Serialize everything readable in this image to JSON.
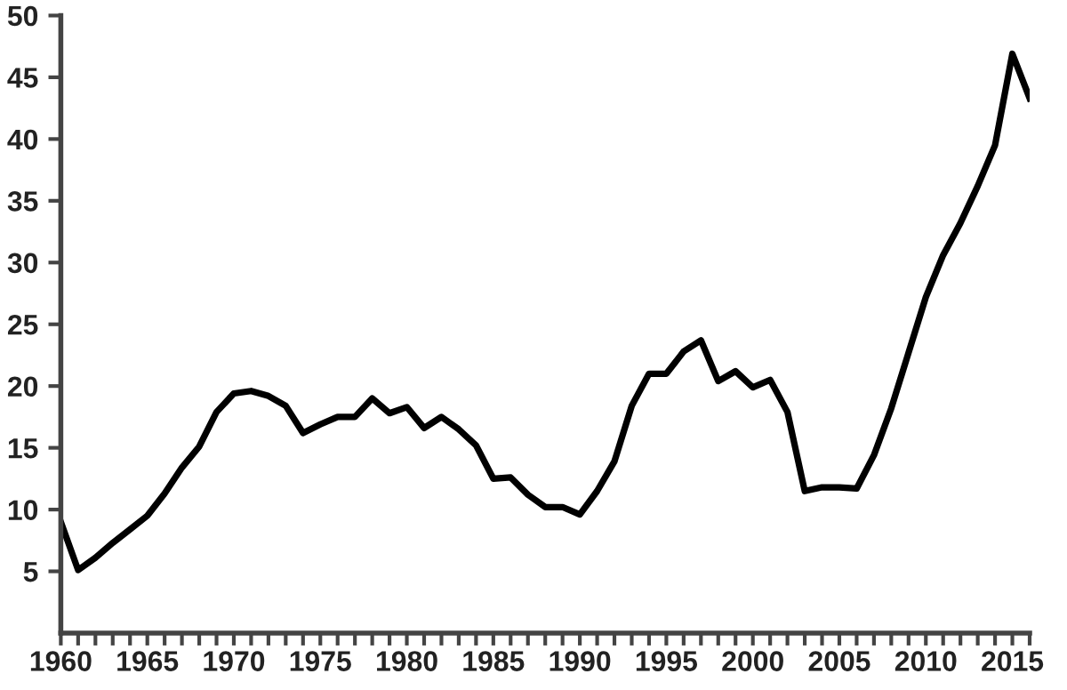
{
  "chart_data": {
    "type": "line",
    "x": [
      1960,
      1961,
      1962,
      1963,
      1964,
      1965,
      1966,
      1967,
      1968,
      1969,
      1970,
      1971,
      1972,
      1973,
      1974,
      1975,
      1976,
      1977,
      1978,
      1979,
      1980,
      1981,
      1982,
      1983,
      1984,
      1985,
      1986,
      1987,
      1988,
      1989,
      1990,
      1991,
      1992,
      1993,
      1994,
      1995,
      1996,
      1997,
      1998,
      1999,
      2000,
      2001,
      2002,
      2003,
      2004,
      2005,
      2006,
      2007,
      2008,
      2009,
      2010,
      2011,
      2012,
      2013,
      2014,
      2015,
      2016
    ],
    "series": [
      {
        "color": "#000000",
        "values": [
          9.0,
          5.1,
          6.1,
          7.3,
          8.4,
          9.5,
          11.3,
          13.4,
          15.1,
          17.9,
          19.4,
          19.6,
          19.2,
          18.4,
          16.2,
          16.9,
          17.5,
          17.5,
          19.0,
          17.8,
          18.3,
          16.6,
          17.5,
          16.5,
          15.2,
          12.5,
          12.6,
          11.2,
          10.2,
          10.2,
          9.6,
          11.5,
          13.9,
          18.4,
          21.0,
          21.0,
          22.8,
          23.7,
          20.4,
          21.2,
          19.9,
          20.5,
          17.9,
          11.5,
          11.8,
          11.8,
          11.7,
          14.4,
          18.2,
          22.7,
          27.2,
          30.6,
          33.2,
          36.2,
          39.5,
          46.9,
          43.3
        ]
      }
    ],
    "xlim": [
      1960,
      2016
    ],
    "xticks": [
      1960,
      {
        "value": 1961,
        "label": null
      },
      {
        "value": 1962,
        "label": null
      },
      {
        "value": 1963,
        "label": null
      },
      {
        "value": 1964,
        "label": null
      },
      1965,
      {
        "value": 1966,
        "label": null
      },
      {
        "value": 1967,
        "label": null
      },
      {
        "value": 1968,
        "label": null
      },
      {
        "value": 1969,
        "label": null
      },
      1970,
      {
        "value": 1971,
        "label": null
      },
      {
        "value": 1972,
        "label": null
      },
      {
        "value": 1973,
        "label": null
      },
      {
        "value": 1974,
        "label": null
      },
      1975,
      {
        "value": 1976,
        "label": null
      },
      {
        "value": 1977,
        "label": null
      },
      {
        "value": 1978,
        "label": null
      },
      {
        "value": 1979,
        "label": null
      },
      1980,
      {
        "value": 1981,
        "label": null
      },
      {
        "value": 1982,
        "label": null
      },
      {
        "value": 1983,
        "label": null
      },
      {
        "value": 1984,
        "label": null
      },
      1985,
      {
        "value": 1986,
        "label": null
      },
      {
        "value": 1987,
        "label": null
      },
      {
        "value": 1988,
        "label": null
      },
      {
        "value": 1989,
        "label": null
      },
      1990,
      {
        "value": 1991,
        "label": null
      },
      {
        "value": 1992,
        "label": null
      },
      {
        "value": 1993,
        "label": null
      },
      {
        "value": 1994,
        "label": null
      },
      1995,
      {
        "value": 1996,
        "label": null
      },
      {
        "value": 1997,
        "label": null
      },
      {
        "value": 1998,
        "label": null
      },
      {
        "value": 1999,
        "label": null
      },
      2000,
      {
        "value": 2001,
        "label": null
      },
      {
        "value": 2002,
        "label": null
      },
      {
        "value": 2003,
        "label": null
      },
      {
        "value": 2004,
        "label": null
      },
      2005,
      {
        "value": 2006,
        "label": null
      },
      {
        "value": 2007,
        "label": null
      },
      {
        "value": 2008,
        "label": null
      },
      {
        "value": 2009,
        "label": null
      },
      2010,
      {
        "value": 2011,
        "label": null
      },
      {
        "value": 2012,
        "label": null
      },
      {
        "value": 2013,
        "label": null
      },
      {
        "value": 2014,
        "label": null
      },
      2015,
      {
        "value": 2016,
        "label": null
      }
    ],
    "ylim": [
      0,
      50
    ],
    "yticks": [
      5,
      10,
      15,
      20,
      25,
      30,
      35,
      40,
      45,
      50
    ],
    "grid": false,
    "marker": "none",
    "line_style": "solid"
  }
}
